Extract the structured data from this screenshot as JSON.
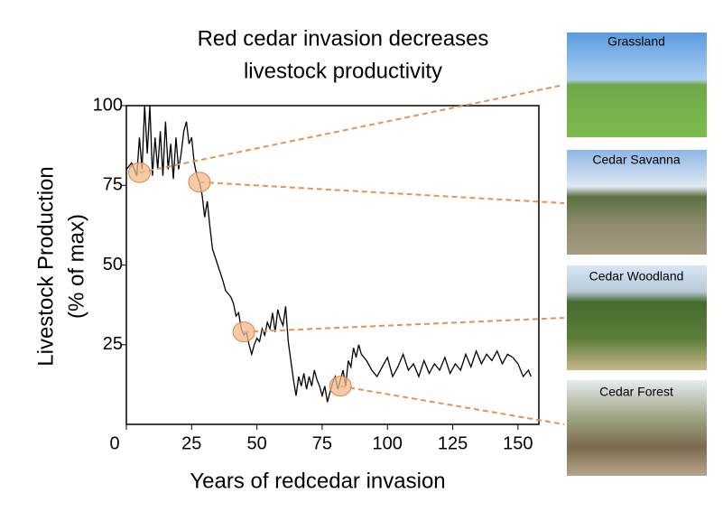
{
  "chart_data": {
    "type": "line",
    "title": [
      "Red cedar invasion decreases",
      "livestock productivity"
    ],
    "x_label": "Years of redcedar invasion",
    "y_label": [
      "Livestock Production",
      "(% of max)"
    ],
    "xlim": [
      0,
      158
    ],
    "ylim": [
      0,
      100
    ],
    "xticks": [
      0,
      25,
      50,
      75,
      100,
      125,
      150
    ],
    "yticks": [
      25,
      50,
      75,
      100
    ],
    "series": [
      {
        "color": "#000000",
        "x": [
          0,
          2,
          4,
          5,
          6,
          7,
          8,
          9,
          10,
          11,
          12,
          13,
          14,
          15,
          16,
          17,
          18,
          19,
          20,
          21,
          22,
          23,
          24,
          25,
          26,
          27,
          28,
          29,
          30,
          31,
          32,
          33,
          35,
          37,
          38,
          40,
          41,
          42,
          43,
          44,
          45,
          46,
          47,
          48,
          49,
          50,
          51,
          52,
          53,
          54,
          55,
          56,
          57,
          58,
          59,
          60,
          61,
          62,
          63,
          64,
          65,
          66,
          67,
          68,
          69,
          70,
          71,
          72,
          73,
          74,
          75,
          76,
          77,
          78,
          79,
          80,
          81,
          82,
          83,
          84,
          85,
          86,
          87,
          88,
          89,
          90,
          92,
          94,
          96,
          98,
          100,
          102,
          104,
          106,
          108,
          110,
          112,
          114,
          116,
          118,
          120,
          122,
          124,
          126,
          128,
          130,
          132,
          134,
          136,
          138,
          140,
          142,
          144,
          146,
          148,
          150,
          152,
          154,
          155
        ],
        "values": [
          80,
          82,
          78,
          90,
          80,
          100,
          85,
          100,
          78,
          90,
          80,
          92,
          78,
          95,
          80,
          88,
          77,
          90,
          80,
          85,
          92,
          95,
          88,
          90,
          82,
          78,
          76,
          72,
          65,
          70,
          62,
          55,
          50,
          45,
          42,
          40,
          38,
          34,
          35,
          30,
          28,
          29,
          25,
          22,
          25,
          27,
          26,
          30,
          28,
          32,
          30,
          35,
          29,
          36,
          33,
          31,
          37,
          26,
          20,
          14,
          9,
          15,
          12,
          16,
          11,
          15,
          12,
          17,
          14,
          12,
          9,
          12,
          7,
          10,
          13,
          15,
          11,
          14,
          17,
          12,
          20,
          18,
          24,
          21,
          25,
          22,
          20,
          17,
          15,
          18,
          21,
          15,
          18,
          22,
          17,
          19,
          15,
          20,
          16,
          19,
          17,
          21,
          16,
          19,
          17,
          22,
          18,
          23,
          19,
          22,
          20,
          23,
          19,
          22,
          21,
          19,
          15,
          17,
          15
        ]
      }
    ],
    "highlights": [
      {
        "x": 5,
        "y": 79,
        "label": "Grassland"
      },
      {
        "x": 28,
        "y": 76,
        "label": "Cedar Savanna"
      },
      {
        "x": 45,
        "y": 29,
        "label": "Cedar Woodland"
      },
      {
        "x": 82,
        "y": 12,
        "label": "Cedar Forest"
      }
    ]
  }
}
